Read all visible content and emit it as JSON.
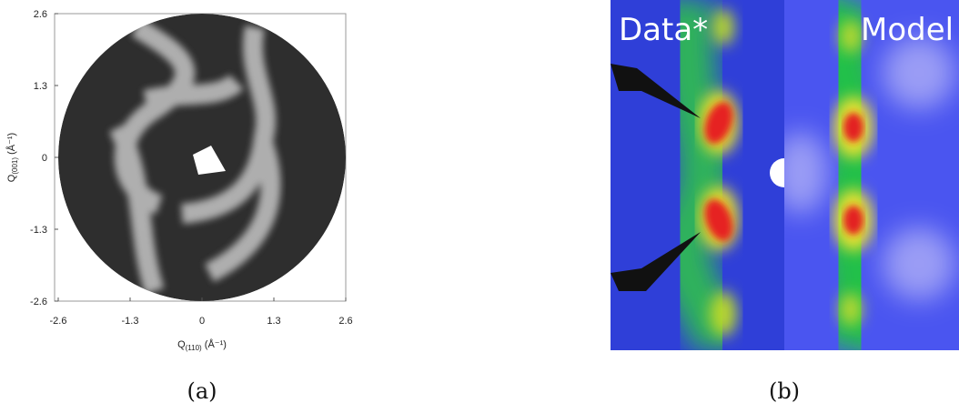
{
  "panel_a": {
    "caption": "(a)",
    "xlim": [
      -2.6,
      2.6
    ],
    "xticks": [
      -2.6,
      -1.3,
      0,
      1.3,
      2.6
    ],
    "ylim": [
      -2.6,
      2.6
    ],
    "yticks": [
      -2.6,
      -1.3,
      0,
      1.3,
      2.6
    ],
    "xlabel": {
      "symbol": "Q",
      "sub": "(110)",
      "unit": " (Å⁻¹)"
    },
    "ylabel": {
      "symbol": "Q",
      "sub": "(001)",
      "unit": " (Å⁻¹)"
    }
  },
  "panel_b": {
    "caption": "(b)",
    "left_label": "Data*",
    "right_label": "Model"
  }
}
